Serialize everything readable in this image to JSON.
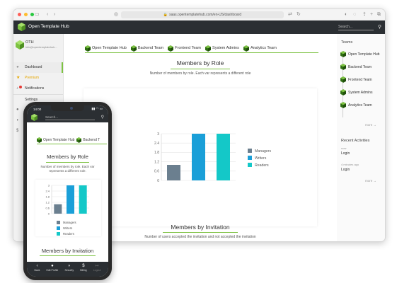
{
  "browser": {
    "url": "saas.opentemplatehub.com/en-US/dashboard",
    "app_title": "Open Template Hub",
    "search_placeholder": "Search..."
  },
  "sidebar": {
    "profile_name": "OTH",
    "profile_email": "info@opentemplatehub...",
    "items": [
      {
        "label": "Dashboard",
        "icon": "speedometer-icon"
      },
      {
        "label": "Premium",
        "icon": "star-icon"
      },
      {
        "label": "Notifications",
        "icon": "bell-icon"
      },
      {
        "label": "Settings",
        "icon": "gear-icon"
      },
      {
        "label": "Ed",
        "icon": "person-icon"
      }
    ]
  },
  "teams": [
    "Open Template Hub",
    "Backend Team",
    "Frontend Team",
    "System Admins",
    "Analytics Team"
  ],
  "sections": {
    "roles_title": "Members by Role",
    "roles_sub": "Number of members by role. Each var represents a different role",
    "roles_sub_mobile": "Number of members by role. Each var represents a different role.",
    "invitation_title": "Members by Invitation",
    "invitation_sub": "Number of users accepted the invitation and not accepted the invitation"
  },
  "right_panel": {
    "teams_head": "Teams",
    "more1": "more →",
    "activities_head": "Recent Activities",
    "activities": [
      {
        "date": "now",
        "text": "Login"
      },
      {
        "date": "4 minutes ago",
        "text": "Login"
      }
    ],
    "more2": "more →"
  },
  "phone": {
    "time": "14:00",
    "status_icons": "▮▮ ◠ ▭",
    "tabs": [
      "Open Template Hub",
      "Backend T"
    ],
    "bottom": [
      {
        "label": "Back",
        "icon": "‹"
      },
      {
        "label": "Edit Profile",
        "icon": "●"
      },
      {
        "label": "Security",
        "icon": "◗"
      },
      {
        "label": "Billing",
        "icon": "$"
      },
      {
        "label": "Logout",
        "icon": "↦"
      }
    ]
  },
  "chart_data": {
    "type": "bar",
    "categories": [
      "Managers",
      "Writers",
      "Readers"
    ],
    "values": [
      1,
      3,
      3
    ],
    "ylim": [
      0,
      3
    ],
    "yticks": [
      "0",
      "0.6",
      "1.2",
      "1.8",
      "2.4",
      "3"
    ],
    "colors": [
      "#6b7f8f",
      "#1a9fd8",
      "#14c8c8"
    ],
    "legend": [
      "Managers",
      "Writers",
      "Readers"
    ],
    "legend_position": "right",
    "grid": true
  }
}
